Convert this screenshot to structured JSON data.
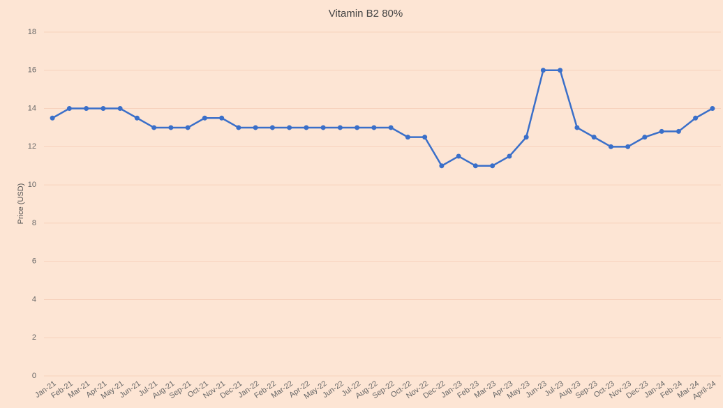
{
  "chart_data": {
    "type": "line",
    "title": "Vitamin B2 80%",
    "y_label": "Price (USD)",
    "categories": [
      "Jan-21",
      "Feb-21",
      "Mar-21",
      "Apr-21",
      "May-21",
      "Jun-21",
      "Jul-21",
      "Aug-21",
      "Sep-21",
      "Oct-21",
      "Nov-21",
      "Dec-21",
      "Jan-22",
      "Feb-22",
      "Mar-22",
      "Apr-22",
      "May-22",
      "Jun-22",
      "Jul-22",
      "Aug-22",
      "Sep-22",
      "Oct-22",
      "Nov-22",
      "Dec-22",
      "Jan-23",
      "Feb-23",
      "Mar-23",
      "Apr-23",
      "May-23",
      "Jun-23",
      "Jul-23",
      "Aug-23",
      "Sep-23",
      "Oct-23",
      "Nov-23",
      "Dec-23",
      "Jan-24",
      "Feb-24",
      "Mar-24",
      "April-24"
    ],
    "values": [
      13.5,
      14,
      14,
      14,
      14,
      13.5,
      13,
      13,
      13,
      13.5,
      13.5,
      13,
      13,
      13,
      13,
      13,
      13,
      13,
      13,
      13,
      13,
      12.5,
      12.5,
      11,
      11.5,
      11,
      11,
      11.5,
      12.5,
      16,
      16,
      13,
      12.5,
      12,
      12,
      12.5,
      12.8,
      12.8,
      13.5,
      14
    ],
    "color": "#3a6fc9",
    "ylim": [
      0,
      18
    ],
    "yticks": [
      0,
      2,
      4,
      6,
      8,
      10,
      12,
      14,
      16,
      18
    ],
    "grid": true
  }
}
